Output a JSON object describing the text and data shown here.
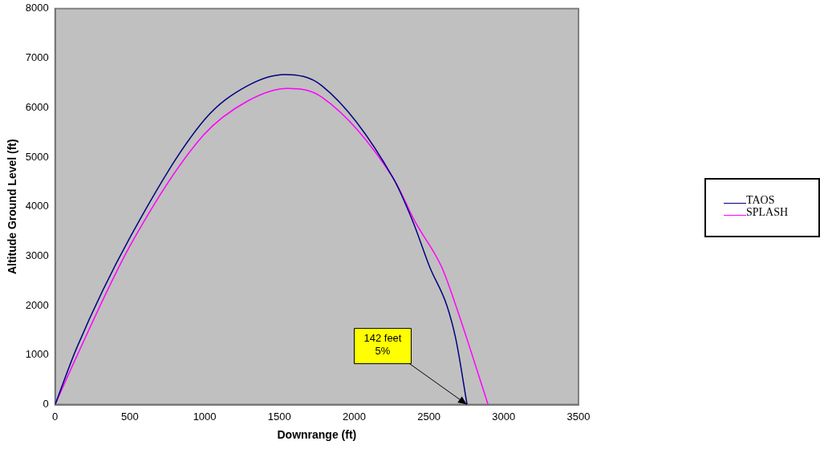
{
  "chart_data": {
    "type": "line",
    "xlabel": "Downrange (ft)",
    "ylabel": "Altitude Ground Level (ft)",
    "xlim": [
      0,
      3500
    ],
    "xticks": [
      0,
      500,
      1000,
      1500,
      2000,
      2500,
      3000,
      3500
    ],
    "ylim": [
      0,
      8000
    ],
    "yticks": [
      0,
      1000,
      2000,
      3000,
      4000,
      5000,
      6000,
      7000,
      8000
    ],
    "grid": false,
    "legend": "right",
    "marker": "none",
    "series": [
      {
        "name": "TAOS",
        "color": "#000080",
        "x": [
          0,
          145,
          505,
          1000,
          1285,
          1535,
          1785,
          2260,
          2395,
          2505,
          2620,
          2680,
          2755
        ],
        "values": [
          0,
          1150,
          3400,
          5760,
          6440,
          6670,
          6440,
          4580,
          3680,
          2780,
          2000,
          1320,
          0
        ]
      },
      {
        "name": "SPLASH",
        "color": "#ff00ff",
        "x": [
          0,
          145,
          505,
          985,
          1285,
          1555,
          1785,
          2260,
          2410,
          2585,
          2680,
          2755,
          2895
        ],
        "values": [
          0,
          980,
          3230,
          5420,
          6130,
          6390,
          6210,
          4580,
          3680,
          2780,
          2000,
          1320,
          0
        ]
      }
    ],
    "annotations": [
      {
        "text": "142 feet\n5%",
        "x": 2754,
        "y": 0
      }
    ]
  }
}
